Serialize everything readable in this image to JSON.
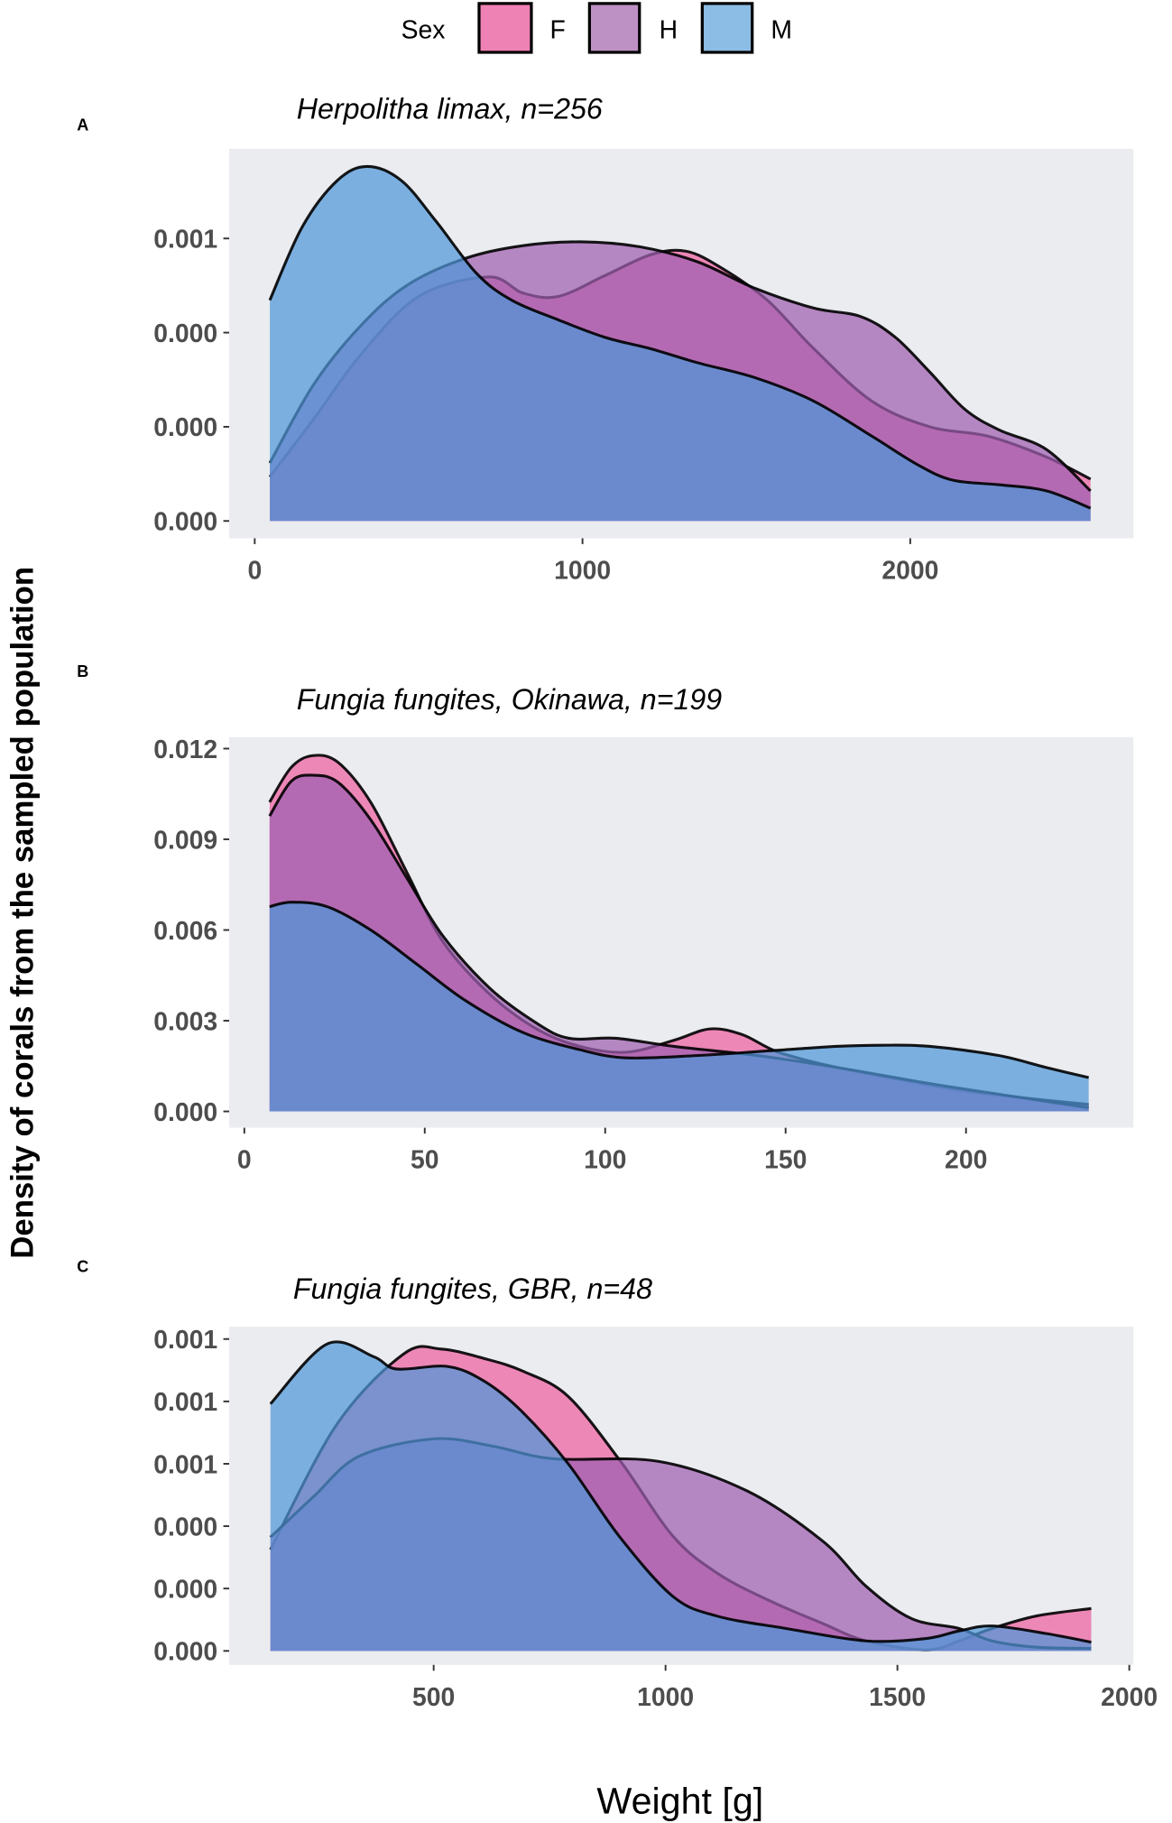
{
  "chart_data": {
    "type": "area",
    "subtype": "density",
    "xlabel": "Weight [g]",
    "ylabel": "Density of corals from the sampled population",
    "legend": {
      "title": "Sex",
      "position": "top",
      "entries": [
        "F",
        "H",
        "M"
      ]
    },
    "colors": {
      "F": "#ec5fa0",
      "H": "#9e5fb0",
      "M": "#4f97d8",
      "F_key": "#ef82b4",
      "H_key": "#bd91c3",
      "M_key": "#8bbde5",
      "panel_bg": "#ebecef",
      "outline": "#000000"
    },
    "panels": [
      {
        "letter": "A",
        "title": "Herpolitha limax, n=256",
        "xlim": [
          -78,
          2681
        ],
        "ylim": [
          -4.6e-05,
          0.000988
        ],
        "xticks": [
          0,
          1000,
          2000
        ],
        "xtick_labels": [
          "0",
          "1000",
          "2000"
        ],
        "yticks": [
          0,
          0.00025,
          0.0005,
          0.00075
        ],
        "ytick_labels": [
          "0.000",
          "0.000",
          "0.000",
          "0.001"
        ],
        "series": [
          {
            "name": "F",
            "x": [
              46,
              181,
              323,
              500,
              713,
              819,
              926,
              1067,
              1209,
              1316,
              1422,
              1564,
              1706,
              1883,
              2060,
              2238,
              2415,
              2550
            ],
            "y": [
              0.000117,
              0.000272,
              0.000441,
              0.000596,
              0.000648,
              0.000605,
              0.000596,
              0.000651,
              0.000707,
              0.000716,
              0.000673,
              0.000586,
              0.000457,
              0.000318,
              0.00025,
              0.000225,
              0.00017,
              0.000111
            ]
          },
          {
            "name": "H",
            "x": [
              46,
              181,
              323,
              465,
              642,
              819,
              996,
              1174,
              1351,
              1528,
              1706,
              1848,
              1954,
              2060,
              2167,
              2273,
              2415,
              2550
            ],
            "y": [
              0.000154,
              0.000364,
              0.000518,
              0.000626,
              0.000697,
              0.000731,
              0.000741,
              0.000728,
              0.000688,
              0.000617,
              0.000565,
              0.000543,
              0.000488,
              0.000395,
              0.000296,
              0.000241,
              0.00019,
              8e-05
            ]
          },
          {
            "name": "M",
            "x": [
              46,
              145,
              252,
              344,
              447,
              553,
              677,
              784,
              926,
              1067,
              1209,
              1351,
              1528,
              1706,
              1883,
              2025,
              2131,
              2273,
              2415,
              2550
            ],
            "y": [
              0.000586,
              0.000781,
              0.000904,
              0.000941,
              0.000904,
              0.000796,
              0.000657,
              0.000586,
              0.000534,
              0.000488,
              0.000457,
              0.00042,
              0.00038,
              0.000318,
              0.000225,
              0.000148,
              0.000108,
              9.6e-05,
              8e-05,
              3.4e-05
            ]
          }
        ]
      },
      {
        "letter": "B",
        "title": "Fungia fungites, Okinawa, n=199",
        "xlim": [
          -4.2,
          246.4
        ],
        "ylim": [
          -0.00054,
          0.01238
        ],
        "xticks": [
          0,
          50,
          100,
          150,
          200
        ],
        "xtick_labels": [
          "0",
          "50",
          "100",
          "150",
          "200"
        ],
        "yticks": [
          0,
          0.003,
          0.006,
          0.009,
          0.012
        ],
        "ytick_labels": [
          "0.000",
          "0.003",
          "0.006",
          "0.009",
          "0.012"
        ],
        "series": [
          {
            "name": "F",
            "x": [
              7,
              13,
              19,
              26,
              35,
              45,
              55,
              68,
              81,
              93,
              106,
              119,
              129,
              138,
              148,
              164,
              184,
              203,
              234
            ],
            "y": [
              0.01023,
              0.01138,
              0.01177,
              0.01154,
              0.01023,
              0.00792,
              0.00562,
              0.00388,
              0.00273,
              0.00215,
              0.00196,
              0.00235,
              0.00273,
              0.00254,
              0.00196,
              0.00146,
              0.001,
              0.00062,
              0.00023
            ]
          },
          {
            "name": "H",
            "x": [
              7,
              13,
              19,
              26,
              35,
              45,
              55,
              68,
              81,
              90,
              103,
              119,
              142,
              164,
              190,
              213,
              234
            ],
            "y": [
              0.00977,
              0.01092,
              0.01112,
              0.01088,
              0.00965,
              0.00773,
              0.00581,
              0.00408,
              0.00292,
              0.00242,
              0.00242,
              0.00215,
              0.00185,
              0.00146,
              0.00092,
              0.0005,
              0.00012
            ]
          },
          {
            "name": "M",
            "x": [
              7,
              13,
              23,
              35,
              48,
              61,
              77,
              93,
              106,
              126,
              145,
              164,
              177,
              190,
              209,
              222,
              234
            ],
            "y": [
              0.00677,
              0.00692,
              0.00677,
              0.006,
              0.00485,
              0.00369,
              0.00262,
              0.00204,
              0.00177,
              0.00185,
              0.002,
              0.00215,
              0.00219,
              0.00215,
              0.00185,
              0.00146,
              0.00112
            ]
          }
        ]
      },
      {
        "letter": "C",
        "title": "Fungia fungites, GBR, n=48",
        "xlim": [
          59,
          2009
        ],
        "ylim": [
          -5.6e-05,
          0.0013
        ],
        "xticks": [
          500,
          1000,
          1500,
          2000
        ],
        "xtick_labels": [
          "500",
          "1000",
          "1500",
          "2000"
        ],
        "yticks": [
          0,
          0.00025,
          0.0005,
          0.00075,
          0.001,
          0.00125
        ],
        "ytick_labels": [
          "0.000",
          "0.000",
          "0.000",
          "0.001",
          "0.001",
          "0.001"
        ],
        "series": [
          {
            "name": "F",
            "x": [
              148,
              290,
              435,
              516,
              613,
              694,
              790,
              903,
              1016,
              1113,
              1226,
              1339,
              1432,
              1562,
              1633,
              1704,
              1800,
              1918
            ],
            "y": [
              0.000406,
              0.000905,
              0.00119,
              0.00121,
              0.00117,
              0.00112,
              0.00102,
              0.00076,
              0.00046,
              0.00031,
              0.0002,
              0.00011,
              4e-05,
              4e-06,
              4e-05,
              9e-05,
              0.00014,
              0.00017
            ]
          },
          {
            "name": "H",
            "x": [
              148,
              242,
              339,
              500,
              629,
              758,
              984,
              1177,
              1339,
              1432,
              1530,
              1633,
              1704,
              1800,
              1918
            ],
            "y": [
              0.000456,
              0.00062,
              0.00078,
              0.00085,
              0.00082,
              0.00077,
              0.00076,
              0.00064,
              0.00044,
              0.00026,
              0.00013,
              9e-05,
              4e-05,
              1.5e-05,
              1e-05
            ]
          },
          {
            "name": "M",
            "x": [
              148,
              270,
              370,
              420,
              530,
              610,
              690,
              790,
              900,
              1015,
              1110,
              1260,
              1432,
              1562,
              1633,
              1704,
              1820,
              1918
            ],
            "y": [
              0.00099,
              0.00123,
              0.00118,
              0.00113,
              0.00114,
              0.00108,
              0.00096,
              0.00075,
              0.00046,
              0.00022,
              0.00014,
              9e-05,
              4e-05,
              5e-05,
              8e-05,
              0.0001,
              7e-05,
              3.5e-05
            ]
          }
        ]
      }
    ]
  }
}
